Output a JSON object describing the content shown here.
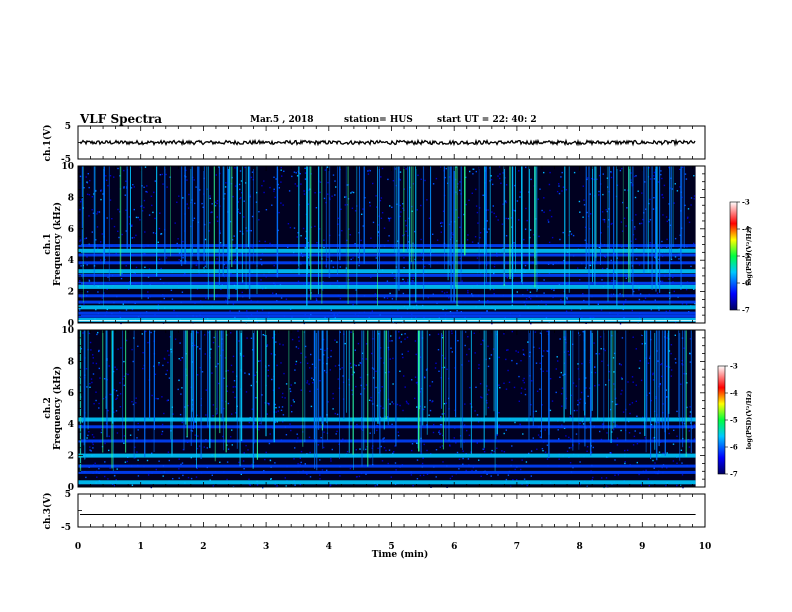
{
  "header": {
    "title": "VLF Spectra",
    "date": "Mar.5 , 2018",
    "station": "station= HUS",
    "start": "start UT = 22: 40: 2"
  },
  "colors": {
    "background": "#000020",
    "axis": "#000000",
    "waveform": "#000000"
  },
  "chart_data": [
    {
      "type": "line",
      "name": "ch1-waveform",
      "ylabel": "ch.1(V)",
      "ylim": [
        -5,
        5
      ],
      "yticks": [
        "5",
        "-5"
      ],
      "xlim": [
        0,
        10
      ],
      "amplitude_range": [
        -0.6,
        0.6
      ]
    },
    {
      "type": "heatmap",
      "name": "ch1-spectrogram",
      "ylabel_line1": "ch.1",
      "ylabel_line2": "Frequency (kHz)",
      "ylim": [
        0,
        10
      ],
      "yticks": [
        "0",
        "2",
        "4",
        "6",
        "8",
        "10"
      ],
      "xlim": [
        0,
        10
      ],
      "data_end_min": 9.85,
      "colorbar": {
        "label": "log(PSD)(V²/Hz)",
        "range": [
          -7,
          -3
        ],
        "ticks": [
          "-3",
          "-4",
          "-5",
          "-6",
          "-7"
        ]
      },
      "bands_khz": [
        0.2,
        0.4,
        0.6,
        1.0,
        1.3,
        1.7,
        2.3,
        2.5,
        3.0,
        3.3,
        3.8,
        4.3,
        4.6,
        4.9
      ]
    },
    {
      "type": "heatmap",
      "name": "ch2-spectrogram",
      "ylabel_line1": "ch.2",
      "ylabel_line2": "Frequency (kHz)",
      "ylim": [
        0,
        10
      ],
      "yticks": [
        "0",
        "2",
        "4",
        "6",
        "8",
        "10"
      ],
      "xlim": [
        0,
        10
      ],
      "data_end_min": 9.85,
      "colorbar": {
        "label": "log(PSD)(V²/Hz)",
        "range": [
          -7,
          -3
        ],
        "ticks": [
          "-3",
          "-4",
          "-5",
          "-6",
          "-7"
        ]
      },
      "bands_khz": [
        0.3,
        0.9,
        1.3,
        2.0,
        2.9,
        3.8,
        4.3
      ]
    },
    {
      "type": "line",
      "name": "ch3-waveform",
      "ylabel": "ch.3(V)",
      "ylim": [
        -5,
        5
      ],
      "yticks": [
        "5",
        "-5"
      ],
      "xlim": [
        0,
        10
      ],
      "xlabel": "Time (min)",
      "xticks": [
        "0",
        "1",
        "2",
        "3",
        "4",
        "5",
        "6",
        "7",
        "8",
        "9",
        "10"
      ],
      "constant_value": -1.2
    }
  ]
}
